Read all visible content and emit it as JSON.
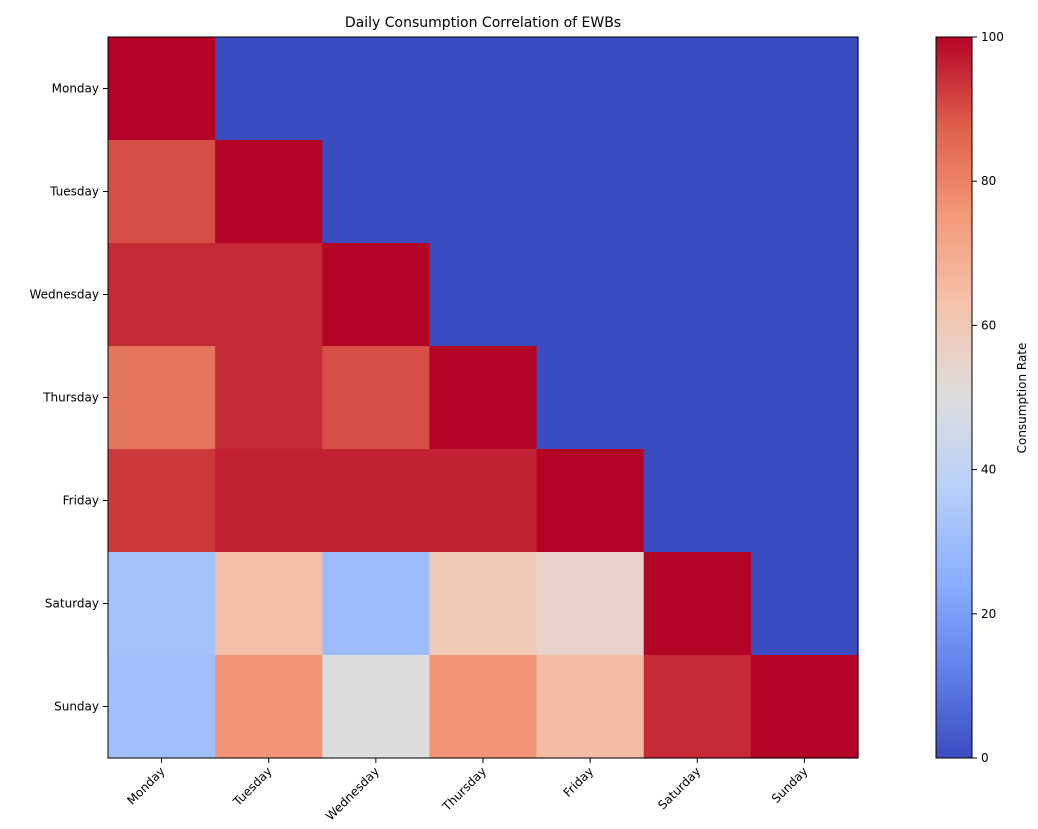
{
  "chart_data": {
    "type": "heatmap",
    "title": "Daily Consumption Correlation of EWBs",
    "rows": [
      "Monday",
      "Tuesday",
      "Wednesday",
      "Thursday",
      "Friday",
      "Saturday",
      "Sunday"
    ],
    "columns": [
      "Monday",
      "Tuesday",
      "Wednesday",
      "Thursday",
      "Friday",
      "Saturday",
      "Sunday"
    ],
    "values": [
      [
        100,
        0,
        0,
        0,
        0,
        0,
        0
      ],
      [
        90,
        100,
        0,
        0,
        0,
        0,
        0
      ],
      [
        95,
        95,
        100,
        0,
        0,
        0,
        0
      ],
      [
        83,
        95,
        90,
        100,
        0,
        0,
        0
      ],
      [
        93,
        96,
        96,
        96,
        100,
        0,
        0
      ],
      [
        32,
        64,
        30,
        60,
        55,
        100,
        0
      ],
      [
        31,
        76,
        50,
        76,
        65,
        95,
        100
      ]
    ],
    "colormap": "coolwarm",
    "vmin": 0,
    "vmax": 100,
    "colorbar": {
      "label": "Consumption Rate",
      "ticks": [
        0,
        20,
        40,
        60,
        80,
        100
      ]
    }
  }
}
